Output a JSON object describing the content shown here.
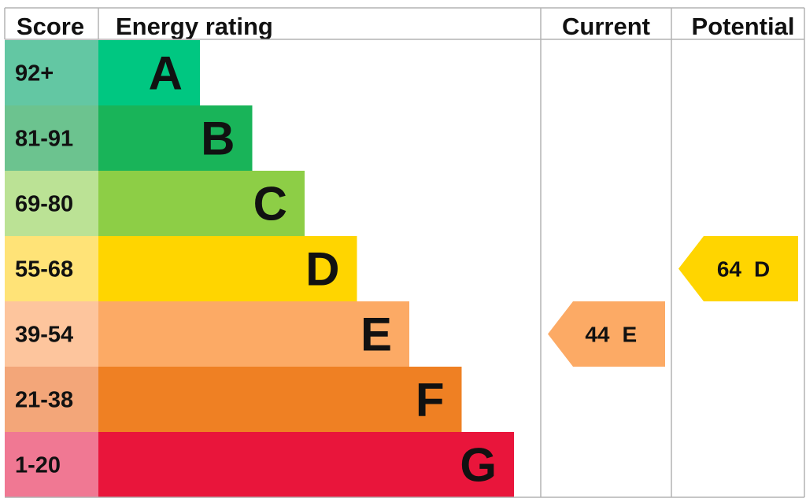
{
  "header": {
    "score": "Score",
    "energy_rating": "Energy rating",
    "current": "Current",
    "potential": "Potential"
  },
  "chart_data": {
    "type": "bar",
    "bands": [
      {
        "range": "92+",
        "letter": "A",
        "color": "#00c781",
        "score_color": "#63c7a3"
      },
      {
        "range": "81-91",
        "letter": "B",
        "color": "#19b459",
        "score_color": "#6cc38f"
      },
      {
        "range": "69-80",
        "letter": "C",
        "color": "#8dce46",
        "score_color": "#bbe295"
      },
      {
        "range": "55-68",
        "letter": "D",
        "color": "#ffd500",
        "score_color": "#ffe377"
      },
      {
        "range": "39-54",
        "letter": "E",
        "color": "#fcaa65",
        "score_color": "#fdc59d"
      },
      {
        "range": "21-38",
        "letter": "F",
        "color": "#ef8023",
        "score_color": "#f3a679"
      },
      {
        "range": "1-20",
        "letter": "G",
        "color": "#e9153b",
        "score_color": "#f07893"
      }
    ],
    "current": {
      "value": 44,
      "letter": "E",
      "color": "#fcaa65"
    },
    "potential": {
      "value": 64,
      "letter": "D",
      "color": "#ffd500"
    }
  }
}
